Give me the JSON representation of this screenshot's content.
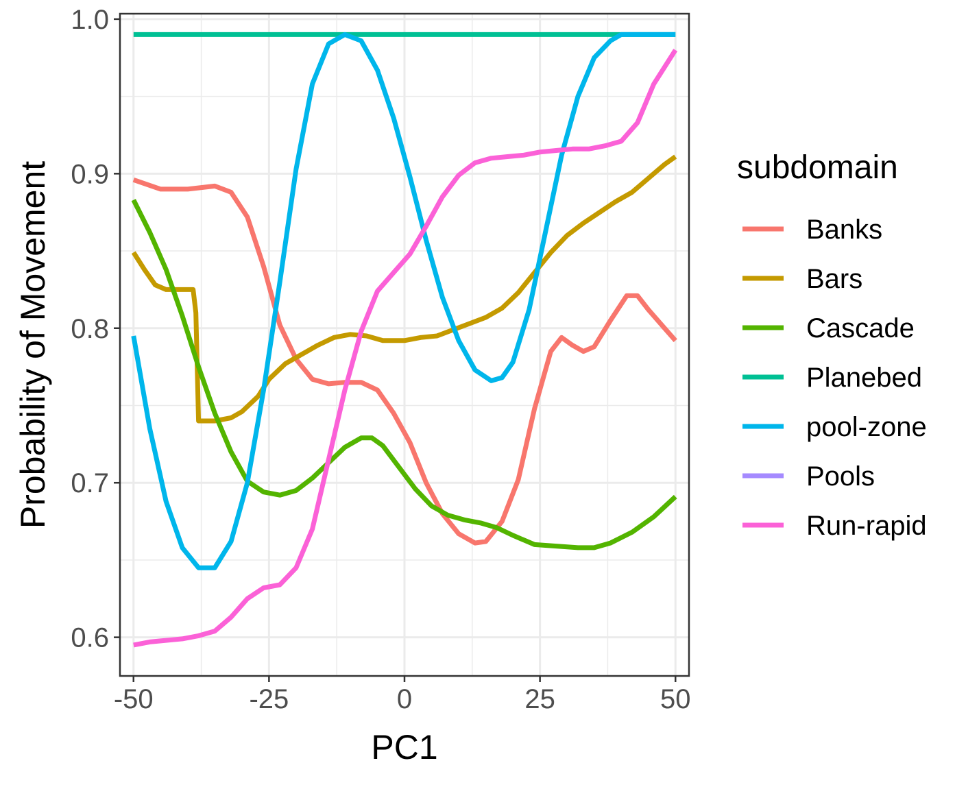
{
  "chart_data": {
    "type": "line",
    "xlabel": "PC1",
    "ylabel": "Probability of Movement",
    "xlim": [
      -52.5,
      52.5
    ],
    "ylim": [
      0.575,
      1.0035
    ],
    "x_ticks": [
      -50,
      -25,
      0,
      25,
      50
    ],
    "x_tick_labels": [
      "-50",
      "-25",
      "0",
      "25",
      "50"
    ],
    "y_ticks": [
      0.6,
      0.7,
      0.8,
      0.9,
      1.0
    ],
    "y_tick_labels": [
      "0.6",
      "0.7",
      "0.8",
      "0.9",
      "1.0"
    ],
    "grid": true,
    "legend": {
      "title": "subdomain",
      "position": "right"
    },
    "series": [
      {
        "name": "Banks",
        "color": "#F8766D",
        "x": [
          -50,
          -45,
          -40,
          -35,
          -32,
          -29,
          -26,
          -23,
          -20,
          -17,
          -14,
          -11,
          -8,
          -5,
          -2,
          1,
          4,
          7,
          10,
          13,
          15,
          18,
          21,
          24,
          27,
          29,
          31,
          33,
          35,
          38,
          41,
          43,
          45,
          48,
          50
        ],
        "y": [
          0.896,
          0.89,
          0.89,
          0.892,
          0.888,
          0.872,
          0.84,
          0.802,
          0.78,
          0.767,
          0.764,
          0.765,
          0.765,
          0.76,
          0.745,
          0.726,
          0.7,
          0.68,
          0.667,
          0.661,
          0.662,
          0.675,
          0.702,
          0.748,
          0.785,
          0.794,
          0.789,
          0.785,
          0.788,
          0.805,
          0.821,
          0.821,
          0.812,
          0.8,
          0.792
        ]
      },
      {
        "name": "Bars",
        "color": "#C49A00",
        "x": [
          -50,
          -48,
          -46,
          -44,
          -41,
          -39,
          -38.5,
          -38,
          -35,
          -32,
          -30,
          -27,
          -25,
          -22,
          -19,
          -16,
          -13,
          -10,
          -7,
          -4,
          0,
          3,
          6,
          9,
          12,
          15,
          18,
          21,
          24,
          27,
          30,
          33,
          36,
          39,
          42,
          45,
          48,
          50
        ],
        "y": [
          0.849,
          0.838,
          0.828,
          0.825,
          0.825,
          0.825,
          0.81,
          0.74,
          0.74,
          0.742,
          0.746,
          0.756,
          0.767,
          0.777,
          0.783,
          0.789,
          0.794,
          0.796,
          0.795,
          0.792,
          0.792,
          0.794,
          0.795,
          0.799,
          0.803,
          0.807,
          0.813,
          0.823,
          0.836,
          0.849,
          0.86,
          0.868,
          0.875,
          0.882,
          0.888,
          0.897,
          0.906,
          0.911
        ]
      },
      {
        "name": "Cascade",
        "color": "#53B400",
        "x": [
          -50,
          -47,
          -44,
          -41,
          -38,
          -35,
          -32,
          -29,
          -26,
          -23,
          -20,
          -17,
          -14,
          -11,
          -8,
          -6,
          -4,
          -1,
          2,
          5,
          8,
          11,
          14,
          17,
          20,
          24,
          28,
          32,
          35,
          38,
          42,
          46,
          50
        ],
        "y": [
          0.883,
          0.862,
          0.838,
          0.808,
          0.775,
          0.745,
          0.72,
          0.701,
          0.694,
          0.692,
          0.695,
          0.703,
          0.713,
          0.723,
          0.729,
          0.729,
          0.724,
          0.71,
          0.696,
          0.685,
          0.679,
          0.676,
          0.674,
          0.671,
          0.666,
          0.66,
          0.659,
          0.658,
          0.658,
          0.661,
          0.668,
          0.678,
          0.691
        ]
      },
      {
        "name": "Planebed",
        "color": "#00C094",
        "x": [
          -50,
          50
        ],
        "y": [
          0.99,
          0.99
        ]
      },
      {
        "name": "pool-zone",
        "color": "#00B6EB",
        "x": [
          -50,
          -47,
          -44,
          -41,
          -38,
          -35,
          -32,
          -29,
          -26,
          -23,
          -20,
          -17,
          -14,
          -11,
          -8,
          -5,
          -2,
          1,
          4,
          7,
          10,
          13,
          16,
          18,
          20,
          23,
          26,
          29,
          32,
          35,
          38,
          40,
          42,
          50
        ],
        "y": [
          0.795,
          0.735,
          0.688,
          0.658,
          0.645,
          0.645,
          0.662,
          0.7,
          0.76,
          0.83,
          0.903,
          0.958,
          0.984,
          0.99,
          0.986,
          0.967,
          0.936,
          0.898,
          0.857,
          0.82,
          0.792,
          0.773,
          0.766,
          0.768,
          0.778,
          0.812,
          0.862,
          0.912,
          0.95,
          0.975,
          0.986,
          0.99,
          0.99,
          0.99
        ]
      },
      {
        "name": "Pools",
        "color": "#A58AFF",
        "x": [],
        "y": []
      },
      {
        "name": "Run-rapid",
        "color": "#FB61D7",
        "x": [
          -50,
          -47,
          -44,
          -41,
          -38,
          -35,
          -32,
          -29,
          -26,
          -23,
          -20,
          -17,
          -14,
          -11,
          -8,
          -5,
          -2,
          1,
          4,
          7,
          10,
          13,
          16,
          19,
          22,
          25,
          28,
          31,
          34,
          37,
          40,
          43,
          46,
          50
        ],
        "y": [
          0.595,
          0.597,
          0.598,
          0.599,
          0.601,
          0.604,
          0.613,
          0.625,
          0.632,
          0.634,
          0.645,
          0.67,
          0.715,
          0.76,
          0.798,
          0.824,
          0.836,
          0.848,
          0.866,
          0.885,
          0.899,
          0.907,
          0.91,
          0.911,
          0.912,
          0.914,
          0.915,
          0.916,
          0.916,
          0.918,
          0.921,
          0.933,
          0.958,
          0.98
        ]
      }
    ]
  }
}
